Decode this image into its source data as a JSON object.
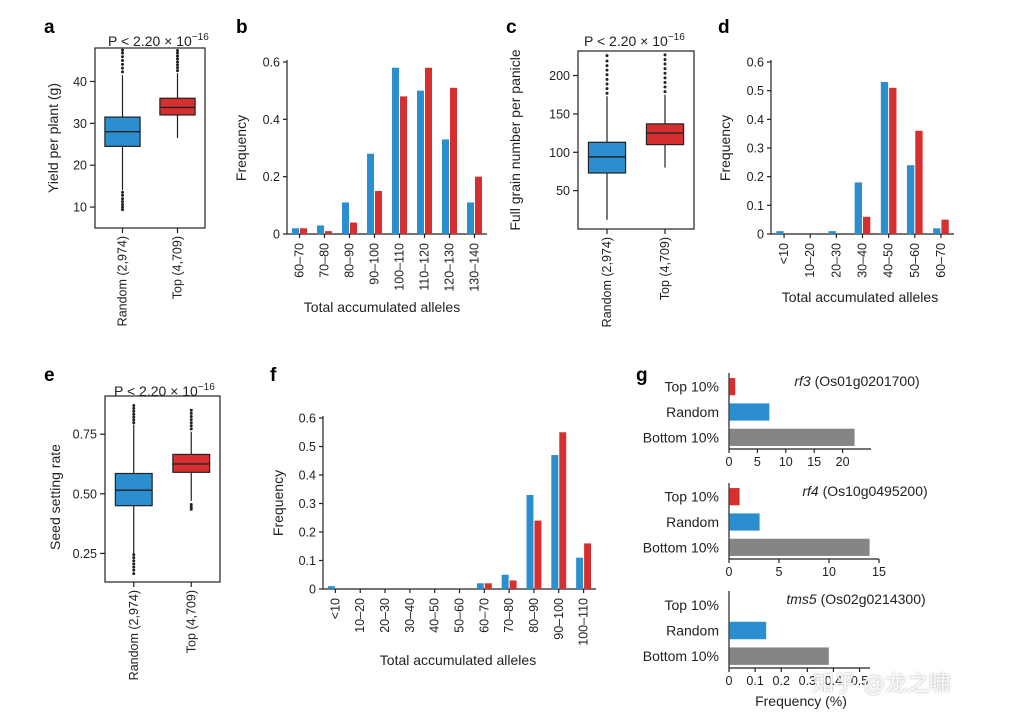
{
  "figure": {
    "colors": {
      "random": "#2b8fcf",
      "top": "#d62f2f",
      "bottom": "#858585",
      "axis": "#222222"
    },
    "watermark": "知乎 @龙之啸"
  },
  "chart_data": [
    {
      "id": "a",
      "type": "box",
      "letter": "a",
      "ylabel": "Yield per plant (g)",
      "annotation": "P < 2.20 × 10",
      "annotation_exp": "−16",
      "categories": [
        "Random (2,974)",
        "Top (4,709)"
      ],
      "ylim": [
        5,
        48
      ],
      "yticks": [
        10,
        20,
        30,
        40
      ],
      "boxes": [
        {
          "name": "Random (2,974)",
          "color": "random",
          "q1": 24.5,
          "median": 28,
          "q3": 31.5,
          "whisker_low": 14,
          "whisker_high": 41.5,
          "outliers_low": [
            13.5,
            12.8,
            12,
            11.3,
            10.6,
            10,
            9.4
          ],
          "outliers_high": [
            42.3,
            43.2,
            44.1,
            45,
            45.9,
            46.8,
            47.5
          ]
        },
        {
          "name": "Top (4,709)",
          "color": "top",
          "q1": 32,
          "median": 33.8,
          "q3": 36,
          "whisker_low": 26.5,
          "whisker_high": 42,
          "outliers_low": [],
          "outliers_high": [
            42.6,
            43.3,
            44,
            44.7,
            45.4,
            46.1,
            46.8,
            47.4
          ]
        }
      ]
    },
    {
      "id": "b",
      "type": "bar",
      "letter": "b",
      "ylabel": "Frequency",
      "xlabel": "Total accumulated alleles",
      "categories": [
        "60–70",
        "70–80",
        "80–90",
        "90–100",
        "100–110",
        "110–120",
        "120–130",
        "130–140"
      ],
      "ylim": [
        0,
        0.6
      ],
      "yticks": [
        0,
        0.2,
        0.4,
        0.6
      ],
      "ytick_labels": [
        "0",
        "0.2",
        "0.4",
        "0.6"
      ],
      "series": [
        {
          "color": "random",
          "values": [
            0.02,
            0.03,
            0.11,
            0.28,
            0.58,
            0.5,
            0.33,
            0.11
          ]
        },
        {
          "color": "top",
          "values": [
            0.02,
            0.01,
            0.04,
            0.15,
            0.48,
            0.58,
            0.51,
            0.2
          ]
        }
      ]
    },
    {
      "id": "c",
      "type": "box",
      "letter": "c",
      "ylabel": "Full grain number per panicle",
      "annotation": "P < 2.20 × 10",
      "annotation_exp": "−16",
      "categories": [
        "Random (2,974)",
        "Top (4,709)"
      ],
      "ylim": [
        0,
        232
      ],
      "yticks": [
        50,
        100,
        150,
        200
      ],
      "boxes": [
        {
          "name": "Random (2,974)",
          "color": "random",
          "q1": 73,
          "median": 94,
          "q3": 113,
          "whisker_low": 12,
          "whisker_high": 173,
          "outliers_low": [],
          "outliers_high": [
            177,
            183,
            189,
            195,
            201,
            207,
            213,
            219,
            226
          ]
        },
        {
          "name": "Top (4,709)",
          "color": "top",
          "q1": 110,
          "median": 125,
          "q3": 137,
          "whisker_low": 80,
          "whisker_high": 175,
          "outliers_low": [],
          "outliers_high": [
            179,
            185,
            191,
            197,
            203,
            209,
            215,
            221,
            227
          ]
        }
      ]
    },
    {
      "id": "d",
      "type": "bar",
      "letter": "d",
      "ylabel": "Frequency",
      "xlabel": "Total accumulated alleles",
      "categories": [
        "<10",
        "10–20",
        "20–30",
        "30–40",
        "40–50",
        "50–60",
        "60–70"
      ],
      "ylim": [
        0,
        0.6
      ],
      "yticks": [
        0,
        0.1,
        0.2,
        0.3,
        0.4,
        0.5,
        0.6
      ],
      "ytick_labels": [
        "0",
        "0.1",
        "0.2",
        "0.3",
        "0.4",
        "0.5",
        "0.6"
      ],
      "series": [
        {
          "color": "random",
          "values": [
            0.01,
            0,
            0.01,
            0.18,
            0.53,
            0.24,
            0.02
          ]
        },
        {
          "color": "top",
          "values": [
            0,
            0,
            0,
            0.06,
            0.51,
            0.36,
            0.05
          ]
        }
      ]
    },
    {
      "id": "e",
      "type": "box",
      "letter": "e",
      "ylabel": "Seed setting rate",
      "annotation": "P < 2.20 × 10",
      "annotation_exp": "−16",
      "categories": [
        "Random (2,974)",
        "Top (4,709)"
      ],
      "ylim": [
        0.13,
        0.91
      ],
      "yticks": [
        0.25,
        0.5,
        0.75
      ],
      "ytick_labels": [
        "0.25",
        "0.50",
        "0.75"
      ],
      "boxes": [
        {
          "name": "Random (2,974)",
          "color": "random",
          "q1": 0.45,
          "median": 0.515,
          "q3": 0.585,
          "whisker_low": 0.25,
          "whisker_high": 0.79,
          "outliers_low": [
            0.245,
            0.232,
            0.219,
            0.206,
            0.193,
            0.18,
            0.165
          ],
          "outliers_high": [
            0.798,
            0.81,
            0.822,
            0.834,
            0.846,
            0.858,
            0.87
          ]
        },
        {
          "name": "Top (4,709)",
          "color": "top",
          "q1": 0.59,
          "median": 0.625,
          "q3": 0.665,
          "whisker_low": 0.47,
          "whisker_high": 0.76,
          "outliers_low": [
            0.455,
            0.445,
            0.435
          ],
          "outliers_high": [
            0.772,
            0.785,
            0.798,
            0.811,
            0.824,
            0.837,
            0.85
          ]
        }
      ]
    },
    {
      "id": "f",
      "type": "bar",
      "letter": "f",
      "ylabel": "Frequency",
      "xlabel": "Total accumulated alleles",
      "categories": [
        "<10",
        "10–20",
        "20–30",
        "30–40",
        "40–50",
        "50–60",
        "60–70",
        "70–80",
        "80–90",
        "90–100",
        "100–110"
      ],
      "ylim": [
        0,
        0.6
      ],
      "yticks": [
        0,
        0.1,
        0.2,
        0.3,
        0.4,
        0.5,
        0.6
      ],
      "ytick_labels": [
        "0",
        "0.1",
        "0.2",
        "0.3",
        "0.4",
        "0.5",
        "0.6"
      ],
      "series": [
        {
          "color": "random",
          "values": [
            0.01,
            0,
            0,
            0,
            0,
            0,
            0.02,
            0.05,
            0.33,
            0.47,
            0.11
          ]
        },
        {
          "color": "top",
          "values": [
            0,
            0,
            0,
            0,
            0,
            0,
            0.02,
            0.03,
            0.24,
            0.55,
            0.16
          ]
        }
      ]
    },
    {
      "id": "g",
      "type": "hbar-group",
      "letter": "g",
      "xlabel": "Frequency (%)",
      "panels": [
        {
          "gene": "rf3",
          "locus": " (Os01g0201700)",
          "categories": [
            "Top 10%",
            "Random",
            "Bottom 10%"
          ],
          "values": [
            1,
            7,
            22
          ],
          "colors": [
            "top",
            "random",
            "bottom"
          ],
          "xlim": [
            0,
            25
          ],
          "xticks": [
            0,
            5,
            10,
            15,
            20
          ],
          "xtick_labels": [
            "0",
            "5",
            "10",
            "15",
            "20"
          ]
        },
        {
          "gene": "rf4",
          "locus": " (Os10g0495200)",
          "categories": [
            "Top 10%",
            "Random",
            "Bottom 10%"
          ],
          "values": [
            1,
            3,
            14
          ],
          "colors": [
            "top",
            "random",
            "bottom"
          ],
          "xlim": [
            0,
            15
          ],
          "xticks": [
            0,
            5,
            10,
            15
          ],
          "xtick_labels": [
            "0",
            "5",
            "10",
            "15"
          ]
        },
        {
          "gene": "tms5",
          "locus": " (Os02g0214300)",
          "categories": [
            "Top 10%",
            "Random",
            "Bottom 10%"
          ],
          "values": [
            0,
            0.14,
            0.38
          ],
          "colors": [
            "top",
            "random",
            "bottom"
          ],
          "xlim": [
            0,
            0.54
          ],
          "xticks": [
            0,
            0.1,
            0.2,
            0.3,
            0.4,
            0.5
          ],
          "xtick_labels": [
            "0",
            "0.1",
            "0.2",
            "0.3",
            "0.4",
            "0.5"
          ]
        }
      ]
    }
  ]
}
